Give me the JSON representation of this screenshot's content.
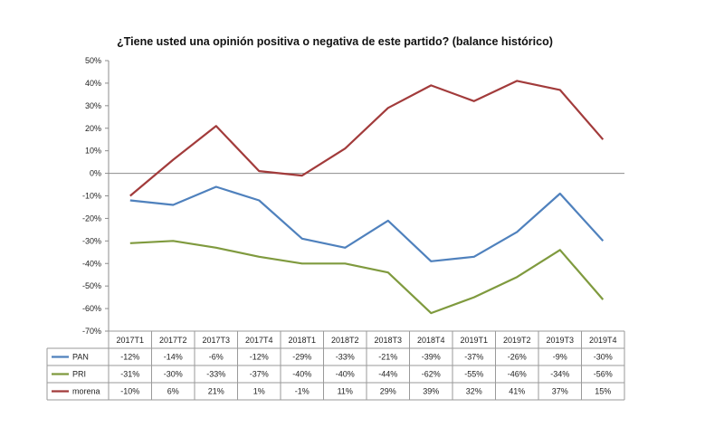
{
  "chart_data": {
    "type": "line",
    "title": "¿Tiene usted una opinión positiva o negativa de este partido? (balance histórico)",
    "xlabel": "",
    "ylabel": "",
    "ylim": [
      -70,
      50
    ],
    "yticks": [
      "50%",
      "40%",
      "30%",
      "20%",
      "10%",
      "0%",
      "-10%",
      "-20%",
      "-30%",
      "-40%",
      "-50%",
      "-60%",
      "-70%"
    ],
    "ytick_values": [
      50,
      40,
      30,
      20,
      10,
      0,
      -10,
      -20,
      -30,
      -40,
      -50,
      -60,
      -70
    ],
    "categories": [
      "2017T1",
      "2017T2",
      "2017T3",
      "2017T4",
      "2018T1",
      "2018T2",
      "2018T3",
      "2018T4",
      "2019T1",
      "2019T2",
      "2019T3",
      "2019T4"
    ],
    "series": [
      {
        "name": "PAN",
        "color": "#4f81bd",
        "values": [
          -12,
          -14,
          -6,
          -12,
          -29,
          -33,
          -21,
          -39,
          -37,
          -26,
          -9,
          -30
        ],
        "labels": [
          "-12%",
          "-14%",
          "-6%",
          "-12%",
          "-29%",
          "-33%",
          "-21%",
          "-39%",
          "-37%",
          "-26%",
          "-9%",
          "-30%"
        ]
      },
      {
        "name": "PRI",
        "color": "#7f9a3e",
        "values": [
          -31,
          -30,
          -33,
          -37,
          -40,
          -40,
          -44,
          -62,
          -55,
          -46,
          -34,
          -56
        ],
        "labels": [
          "-31%",
          "-30%",
          "-33%",
          "-37%",
          "-40%",
          "-40%",
          "-44%",
          "-62%",
          "-55%",
          "-46%",
          "-34%",
          "-56%"
        ]
      },
      {
        "name": "morena",
        "color": "#a23b3b",
        "values": [
          -10,
          6,
          21,
          1,
          -1,
          11,
          29,
          39,
          32,
          41,
          37,
          15
        ],
        "labels": [
          "-10%",
          "6%",
          "21%",
          "1%",
          "-1%",
          "11%",
          "29%",
          "39%",
          "32%",
          "41%",
          "37%",
          "15%"
        ]
      }
    ]
  }
}
